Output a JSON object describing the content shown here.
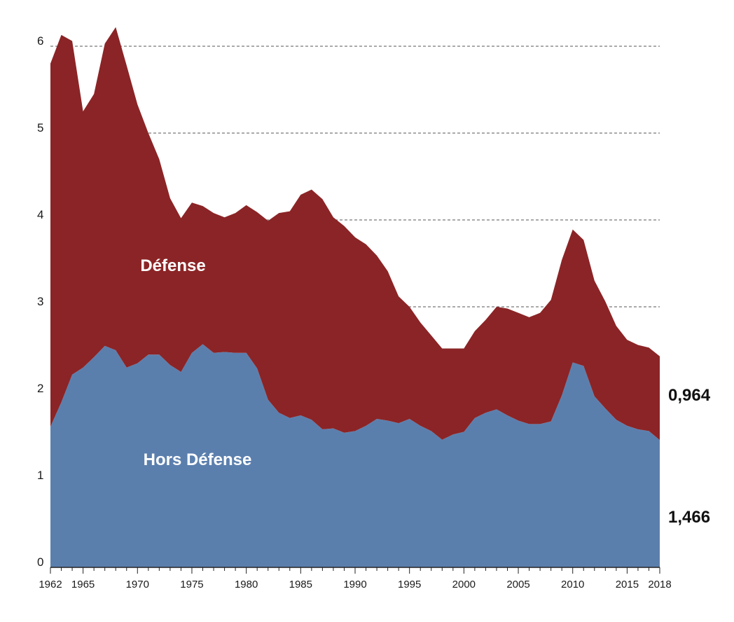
{
  "chart_data": {
    "type": "area",
    "stacked": true,
    "title": "",
    "xlabel": "",
    "ylabel": "",
    "x": [
      1962,
      1963,
      1964,
      1965,
      1966,
      1967,
      1968,
      1969,
      1970,
      1971,
      1972,
      1973,
      1974,
      1975,
      1976,
      1977,
      1978,
      1979,
      1980,
      1981,
      1982,
      1983,
      1984,
      1985,
      1986,
      1987,
      1988,
      1989,
      1990,
      1991,
      1992,
      1993,
      1994,
      1995,
      1996,
      1997,
      1998,
      1999,
      2000,
      2001,
      2002,
      2003,
      2004,
      2005,
      2006,
      2007,
      2008,
      2009,
      2010,
      2011,
      2012,
      2013,
      2014,
      2015,
      2016,
      2017,
      2018
    ],
    "xlim": [
      1962,
      2018
    ],
    "ylim": [
      0,
      6.3
    ],
    "xticks": [
      "1962",
      "1965",
      "1970",
      "1975",
      "1980",
      "1985",
      "1990",
      "1995",
      "2000",
      "2005",
      "2010",
      "2015",
      "2018"
    ],
    "yticks": [
      "0",
      "1",
      "2",
      "3",
      "4",
      "5",
      "6"
    ],
    "grid": true,
    "series": [
      {
        "name": "Hors Défense",
        "color": "#5b7fad",
        "values": [
          1.62,
          1.9,
          2.22,
          2.3,
          2.42,
          2.55,
          2.5,
          2.3,
          2.35,
          2.45,
          2.45,
          2.33,
          2.25,
          2.47,
          2.57,
          2.47,
          2.48,
          2.47,
          2.47,
          2.29,
          1.93,
          1.78,
          1.72,
          1.75,
          1.7,
          1.59,
          1.6,
          1.55,
          1.57,
          1.63,
          1.71,
          1.69,
          1.66,
          1.71,
          1.63,
          1.57,
          1.47,
          1.53,
          1.56,
          1.72,
          1.78,
          1.82,
          1.75,
          1.69,
          1.65,
          1.65,
          1.68,
          1.98,
          2.36,
          2.32,
          1.97,
          1.83,
          1.7,
          1.63,
          1.59,
          1.57,
          1.466
        ]
      },
      {
        "name": "Défense",
        "color": "#8b2426",
        "values": [
          4.18,
          4.23,
          3.84,
          2.95,
          3.03,
          3.48,
          3.72,
          3.48,
          2.98,
          2.55,
          2.25,
          1.92,
          1.77,
          1.73,
          1.59,
          1.61,
          1.55,
          1.61,
          1.7,
          1.8,
          2.06,
          2.3,
          2.38,
          2.54,
          2.65,
          2.65,
          2.43,
          2.38,
          2.23,
          2.09,
          1.88,
          1.72,
          1.46,
          1.29,
          1.19,
          1.1,
          1.05,
          0.99,
          0.96,
          1.0,
          1.07,
          1.18,
          1.23,
          1.24,
          1.23,
          1.28,
          1.4,
          1.56,
          1.53,
          1.45,
          1.33,
          1.23,
          1.08,
          0.99,
          0.97,
          0.96,
          0.964
        ]
      }
    ],
    "series_labels": {
      "defense": "Défense",
      "hors_defense": "Hors Défense"
    },
    "end_labels": {
      "defense": "0,964",
      "hors_defense": "1,466"
    }
  }
}
